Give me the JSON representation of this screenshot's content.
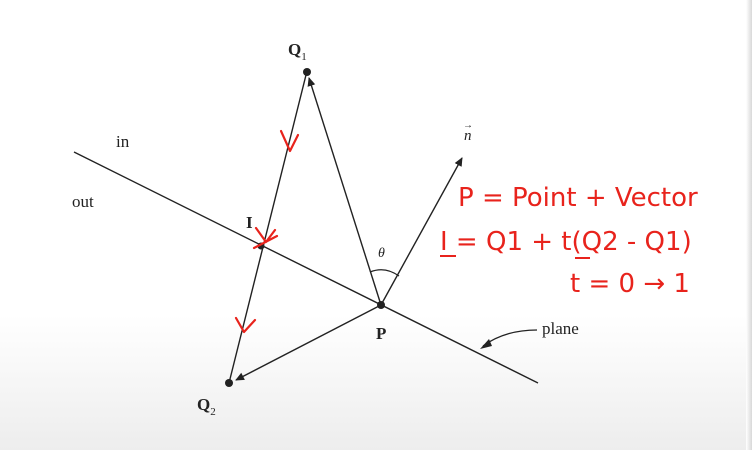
{
  "figure": {
    "labels": {
      "q1_name": "Q",
      "q1_sub": "1",
      "q2_name": "Q",
      "q2_sub": "2",
      "i_name": "I",
      "p_name": "P",
      "n_name": "n",
      "n_arrow": "→",
      "theta": "θ",
      "in": "in",
      "out": "out",
      "plane": "plane"
    },
    "annotations": {
      "line1": "P = Point + Vector",
      "line2": "I = Q1 + t(Q2 - Q1)",
      "line3": "t = 0 → 1"
    },
    "colors": {
      "ink": "#222222",
      "annotation": "#e8231c"
    }
  }
}
